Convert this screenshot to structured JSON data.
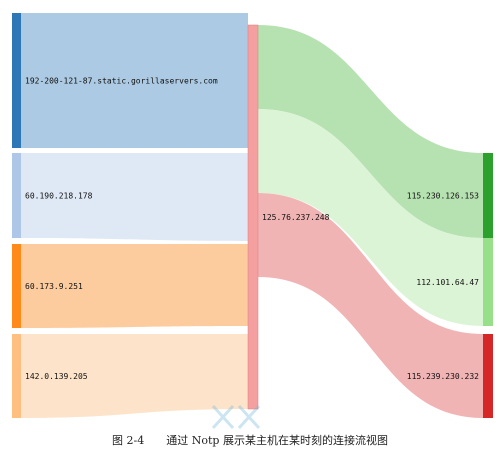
{
  "caption": {
    "figure_no": "图 2-4",
    "text": "通过 Notp 展示某主机在某时刻的连接流视图"
  },
  "colors": {
    "src_192": {
      "node": "#2e77b6",
      "band": "#a8c7e2"
    },
    "src_60_190": {
      "node": "#aec6e8",
      "band": "#dde7f4"
    },
    "src_60_173": {
      "node": "#ff8a1a",
      "band": "#fdc999"
    },
    "src_142": {
      "node": "#ffbf80",
      "band": "#fde2c6"
    },
    "hub": {
      "node": "#f4a0a0"
    },
    "dst_115_230": {
      "node": "#2ca02c",
      "band": "#a9dca3"
    },
    "dst_112": {
      "node": "#98df8a",
      "band": "#d6f2cf"
    },
    "dst_115_239": {
      "node": "#d62728",
      "band": "#eea7a8"
    }
  },
  "sources": [
    {
      "id": "src_192",
      "label": "192-200-121-87.static.gorillaservers.com"
    },
    {
      "id": "src_60_190",
      "label": "60.190.218.178"
    },
    {
      "id": "src_60_173",
      "label": "60.173.9.251"
    },
    {
      "id": "src_142",
      "label": "142.0.139.205"
    }
  ],
  "hub": {
    "id": "hub",
    "label": "125.76.237.248"
  },
  "targets": [
    {
      "id": "dst_115_230",
      "label": "115.230.126.153"
    },
    {
      "id": "dst_112",
      "label": "112.101.64.47"
    },
    {
      "id": "dst_115_239",
      "label": "115.239.230.232"
    }
  ],
  "flows": {
    "in": [
      {
        "from": "src_192",
        "to": "hub",
        "value": 135
      },
      {
        "from": "src_60_190",
        "to": "hub",
        "value": 85
      },
      {
        "from": "src_60_173",
        "to": "hub",
        "value": 85
      },
      {
        "from": "src_142",
        "to": "hub",
        "value": 85
      }
    ],
    "out": [
      {
        "from": "hub",
        "to": "dst_115_230",
        "value": 85
      },
      {
        "from": "hub",
        "to": "dst_112",
        "value": 85
      },
      {
        "from": "hub",
        "to": "dst_115_239",
        "value": 85
      }
    ]
  }
}
